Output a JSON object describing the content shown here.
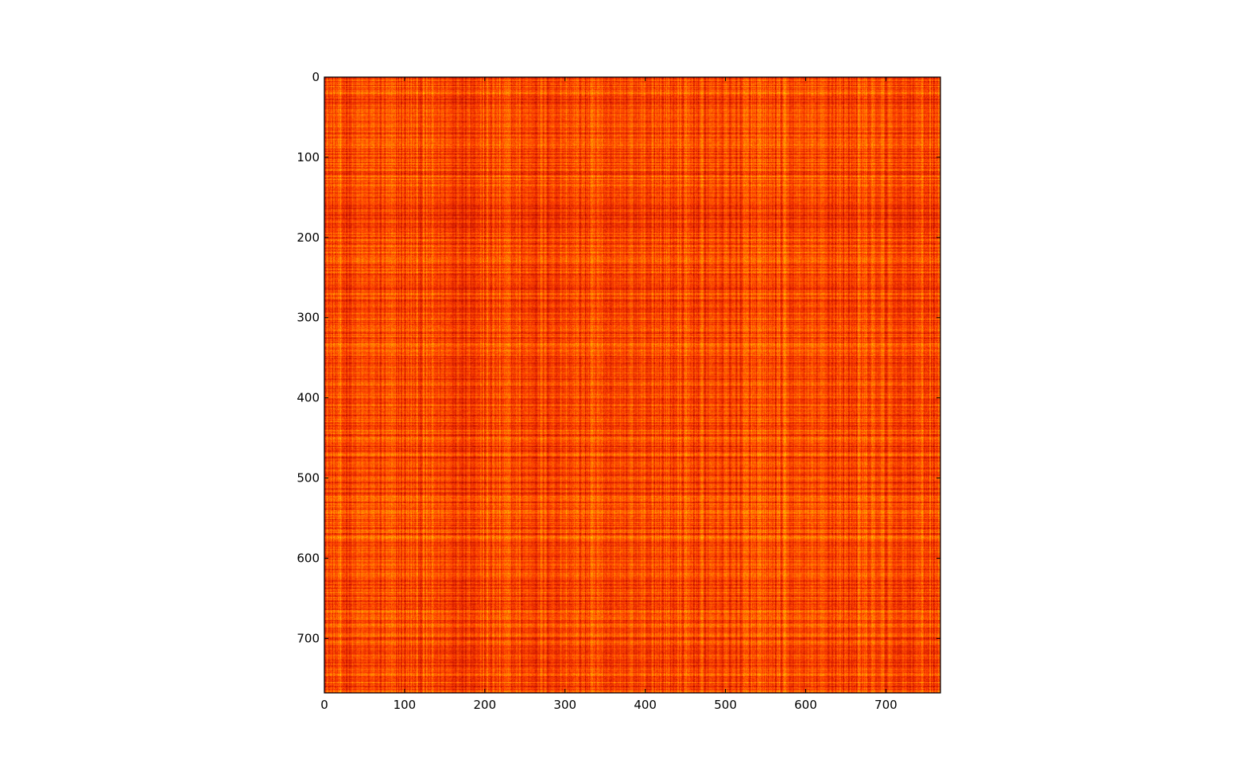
{
  "chart_data": {
    "type": "heatmap",
    "title": "",
    "xlabel": "",
    "ylabel": "",
    "rows": 768,
    "cols": 768,
    "xlim": [
      0,
      768
    ],
    "ylim": [
      768,
      0
    ],
    "x_ticks": [
      0,
      100,
      200,
      300,
      400,
      500,
      600,
      700
    ],
    "y_ticks": [
      0,
      100,
      200,
      300,
      400,
      500,
      600,
      700
    ],
    "x_tick_labels": [
      "0",
      "100",
      "200",
      "300",
      "400",
      "500",
      "600",
      "700"
    ],
    "y_tick_labels": [
      "0",
      "100",
      "200",
      "300",
      "400",
      "500",
      "600",
      "700"
    ],
    "colormap": "hot",
    "colormap_colors": [
      "#8b0000",
      "#cc1500",
      "#ff4000",
      "#ff8c00",
      "#ffd700"
    ],
    "grid": false,
    "legend": "none"
  }
}
